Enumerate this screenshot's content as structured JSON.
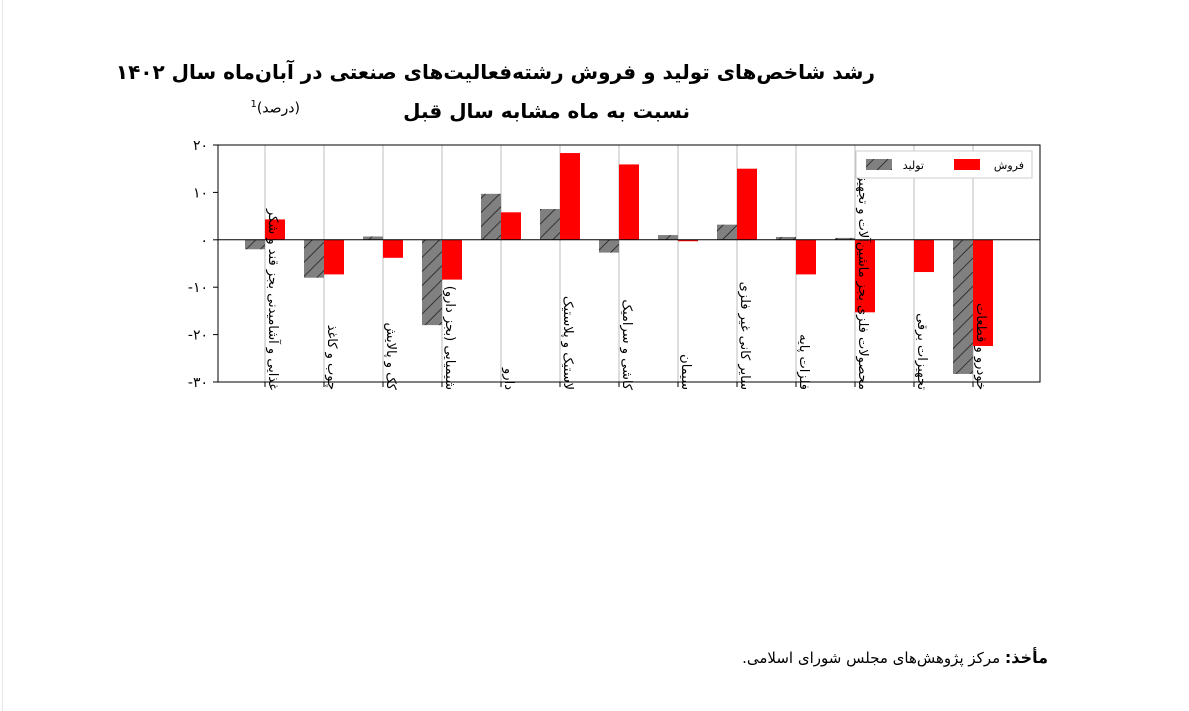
{
  "title_line1": "رشد شاخص‌های تولید و فروش رشته‌فعالیت‌های صنعتی در آبان‌ماه سال ۱۴۰۲",
  "title_line2": "نسبت به ماه مشابه سال قبل",
  "unit_label": "(درصد)",
  "unit_footnote": "1",
  "source_label": "مأخذ:",
  "source_text": " مرکز پژوهش‌های مجلس شورای اسلامی.",
  "colors": {
    "production": "#808080",
    "sales": "#ff0000"
  },
  "chart_data": {
    "type": "bar",
    "categories": [
      "غذایی و آشامیدنی بجز قند و شکر",
      "چوب و کاغذ",
      "کک و پالایش",
      "شیمیایی (بجز دارو)",
      "دارو",
      "لاستیک و پلاستیک",
      "کاشی و سرامیک",
      "سیمان",
      "سایر کانی غیر فلزی",
      "فلزات پایه",
      "محصولات فلزی بجز ماشین‌آلات و تجهیزات",
      "تجهیزات برقی",
      "خودرو و قطعات"
    ],
    "series": [
      {
        "name": "تولید",
        "values": [
          -2,
          -8,
          0.7,
          -18,
          9.7,
          6.5,
          -2.7,
          1.0,
          3.2,
          0.6,
          0.4,
          0,
          -28.3
        ]
      },
      {
        "name": "فروش",
        "values": [
          4.3,
          -7.3,
          -3.8,
          -8.4,
          5.8,
          18.3,
          15.9,
          -0.3,
          15.0,
          -7.3,
          -15.3,
          -6.8,
          -22.4
        ]
      }
    ],
    "yticks": [
      "۲۰",
      "۱۰",
      "۰",
      "-۱۰",
      "-۲۰",
      "-۳۰"
    ],
    "ytick_values": [
      20,
      10,
      0,
      -10,
      -20,
      -30
    ],
    "ylim": [
      -30,
      20
    ],
    "grid": "vertical",
    "legend_position": "top-right"
  }
}
